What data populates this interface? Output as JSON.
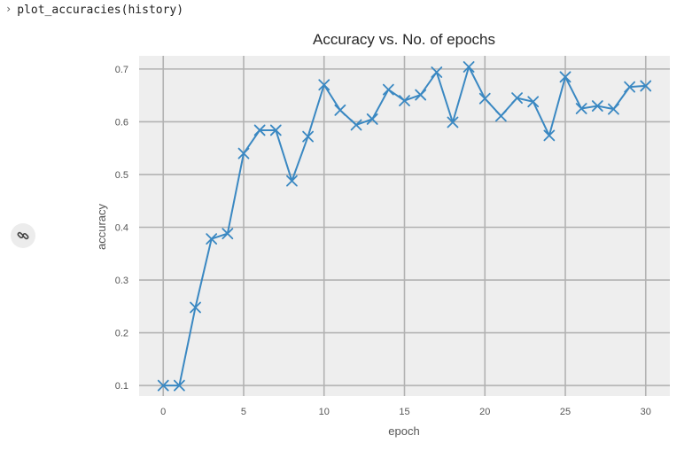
{
  "code_cell": {
    "code": "plot_accuracies(history)"
  },
  "link_button": {
    "icon": "link-icon"
  },
  "chart_data": {
    "type": "line",
    "title": "Accuracy vs. No. of epochs",
    "xlabel": "epoch",
    "ylabel": "accuracy",
    "x": [
      0,
      1,
      2,
      3,
      4,
      5,
      6,
      7,
      8,
      9,
      10,
      11,
      12,
      13,
      14,
      15,
      16,
      17,
      18,
      19,
      20,
      21,
      22,
      23,
      24,
      25,
      26,
      27,
      28,
      29,
      30
    ],
    "series": [
      {
        "values": [
          0.1,
          0.1,
          0.248,
          0.378,
          0.388,
          0.54,
          0.584,
          0.584,
          0.488,
          0.572,
          0.67,
          0.622,
          0.594,
          0.605,
          0.661,
          0.64,
          0.651,
          0.694,
          0.599,
          0.704,
          0.644,
          0.611,
          0.645,
          0.638,
          0.574,
          0.685,
          0.625,
          0.63,
          0.624,
          0.666,
          0.668
        ],
        "color": "#3a88c2",
        "marker": "x"
      }
    ],
    "xlim": [
      -1.5,
      31.5
    ],
    "ylim": [
      0.08,
      0.725
    ],
    "xticks": [
      0,
      5,
      10,
      15,
      20,
      25,
      30
    ],
    "yticks": [
      0.1,
      0.2,
      0.3,
      0.4,
      0.5,
      0.6,
      0.7
    ],
    "xtick_labels": [
      "0",
      "5",
      "10",
      "15",
      "20",
      "25",
      "30"
    ],
    "ytick_labels": [
      "0.1",
      "0.2",
      "0.3",
      "0.4",
      "0.5",
      "0.6",
      "0.7"
    ],
    "grid": true,
    "background": "#eeeeee",
    "grid_color": "#b2b2b2"
  }
}
